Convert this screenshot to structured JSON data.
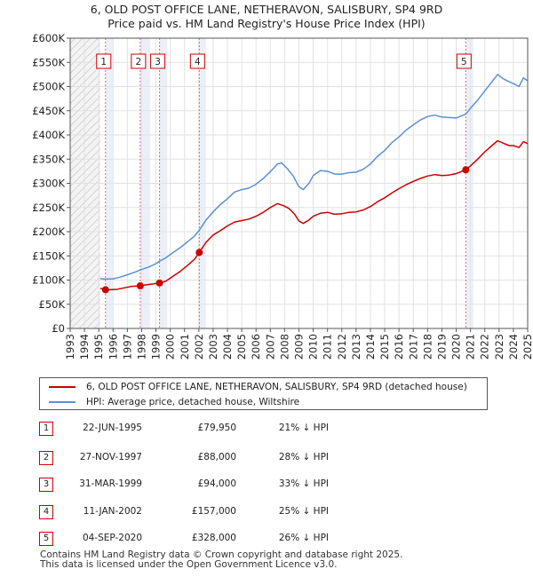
{
  "chart_data": {
    "type": "line",
    "title": "6, OLD POST OFFICE LANE, NETHERAVON, SALISBURY, SP4 9RD",
    "subtitle": "Price paid vs. HM Land Registry's House Price Index (HPI)",
    "xlim": [
      1993,
      2025
    ],
    "ylim": [
      0,
      600000
    ],
    "x_ticks": [
      1993,
      1994,
      1995,
      1996,
      1997,
      1998,
      1999,
      2000,
      2001,
      2002,
      2003,
      2004,
      2005,
      2006,
      2007,
      2008,
      2009,
      2010,
      2011,
      2012,
      2013,
      2014,
      2015,
      2016,
      2017,
      2018,
      2019,
      2020,
      2021,
      2022,
      2023,
      2024,
      2025
    ],
    "y_ticks": [
      0,
      50000,
      100000,
      150000,
      200000,
      250000,
      300000,
      350000,
      400000,
      450000,
      500000,
      550000,
      600000
    ],
    "y_tick_labels": [
      "£0",
      "£50K",
      "£100K",
      "£150K",
      "£200K",
      "£250K",
      "£300K",
      "£350K",
      "£400K",
      "£450K",
      "£500K",
      "£550K",
      "£600K"
    ],
    "hatched_region": [
      1993,
      1995.1
    ],
    "shaded_spans": [
      [
        1995.47,
        1996.0
      ],
      [
        1997.9,
        1998.6
      ],
      [
        1999.25,
        1999.8
      ],
      [
        2002.03,
        2002.5
      ],
      [
        2020.67,
        2021.2
      ]
    ],
    "series": [
      {
        "name": "6, OLD POST OFFICE LANE, NETHERAVON, SALISBURY, SP4 9RD (detached house)",
        "color": "#cc0000",
        "points": [
          [
            1995.1,
            83000
          ],
          [
            1995.47,
            79950
          ],
          [
            1995.8,
            80000
          ],
          [
            1996.3,
            81000
          ],
          [
            1996.8,
            84000
          ],
          [
            1997.3,
            87000
          ],
          [
            1997.9,
            88000
          ],
          [
            1998.3,
            90000
          ],
          [
            1998.8,
            92000
          ],
          [
            1999.25,
            94000
          ],
          [
            1999.7,
            98000
          ],
          [
            2000.2,
            108000
          ],
          [
            2000.7,
            118000
          ],
          [
            2001.2,
            130000
          ],
          [
            2001.7,
            143000
          ],
          [
            2002.03,
            157000
          ],
          [
            2002.5,
            178000
          ],
          [
            2003.0,
            193000
          ],
          [
            2003.5,
            202000
          ],
          [
            2004.0,
            212000
          ],
          [
            2004.5,
            220000
          ],
          [
            2005.0,
            223000
          ],
          [
            2005.5,
            226000
          ],
          [
            2006.0,
            232000
          ],
          [
            2006.5,
            240000
          ],
          [
            2007.0,
            250000
          ],
          [
            2007.5,
            258000
          ],
          [
            2007.9,
            254000
          ],
          [
            2008.3,
            248000
          ],
          [
            2008.7,
            236000
          ],
          [
            2009.0,
            222000
          ],
          [
            2009.3,
            217000
          ],
          [
            2009.7,
            224000
          ],
          [
            2010.0,
            232000
          ],
          [
            2010.5,
            238000
          ],
          [
            2011.0,
            240000
          ],
          [
            2011.5,
            236000
          ],
          [
            2012.0,
            237000
          ],
          [
            2012.5,
            240000
          ],
          [
            2013.0,
            241000
          ],
          [
            2013.5,
            245000
          ],
          [
            2014.0,
            252000
          ],
          [
            2014.5,
            262000
          ],
          [
            2015.0,
            270000
          ],
          [
            2015.5,
            280000
          ],
          [
            2016.0,
            289000
          ],
          [
            2016.5,
            297000
          ],
          [
            2017.0,
            304000
          ],
          [
            2017.5,
            310000
          ],
          [
            2018.0,
            315000
          ],
          [
            2018.5,
            318000
          ],
          [
            2019.0,
            316000
          ],
          [
            2019.5,
            317000
          ],
          [
            2020.0,
            320000
          ],
          [
            2020.67,
            328000
          ],
          [
            2021.0,
            336000
          ],
          [
            2021.5,
            350000
          ],
          [
            2022.0,
            365000
          ],
          [
            2022.5,
            378000
          ],
          [
            2022.9,
            388000
          ],
          [
            2023.3,
            383000
          ],
          [
            2023.7,
            378000
          ],
          [
            2024.0,
            378000
          ],
          [
            2024.4,
            374000
          ],
          [
            2024.7,
            386000
          ],
          [
            2025.0,
            382000
          ]
        ]
      },
      {
        "name": "HPI: Average price, detached house, Wiltshire",
        "color": "#5b8fd4",
        "points": [
          [
            1995.1,
            103000
          ],
          [
            1995.47,
            102000
          ],
          [
            1996.0,
            102500
          ],
          [
            1996.5,
            106000
          ],
          [
            1997.0,
            111000
          ],
          [
            1997.5,
            116000
          ],
          [
            1997.9,
            121000
          ],
          [
            1998.5,
            127000
          ],
          [
            1999.0,
            134000
          ],
          [
            1999.25,
            139000
          ],
          [
            1999.7,
            146000
          ],
          [
            2000.2,
            157000
          ],
          [
            2000.7,
            167000
          ],
          [
            2001.2,
            179000
          ],
          [
            2001.7,
            191000
          ],
          [
            2002.03,
            203000
          ],
          [
            2002.5,
            224000
          ],
          [
            2003.0,
            241000
          ],
          [
            2003.5,
            256000
          ],
          [
            2004.0,
            268000
          ],
          [
            2004.5,
            282000
          ],
          [
            2005.0,
            287000
          ],
          [
            2005.5,
            290000
          ],
          [
            2006.0,
            298000
          ],
          [
            2006.5,
            310000
          ],
          [
            2007.0,
            324000
          ],
          [
            2007.5,
            340000
          ],
          [
            2007.8,
            342000
          ],
          [
            2008.2,
            330000
          ],
          [
            2008.6,
            315000
          ],
          [
            2009.0,
            293000
          ],
          [
            2009.3,
            287000
          ],
          [
            2009.7,
            300000
          ],
          [
            2010.0,
            316000
          ],
          [
            2010.5,
            326000
          ],
          [
            2011.0,
            325000
          ],
          [
            2011.5,
            319000
          ],
          [
            2012.0,
            319000
          ],
          [
            2012.5,
            322000
          ],
          [
            2013.0,
            323000
          ],
          [
            2013.5,
            329000
          ],
          [
            2014.0,
            340000
          ],
          [
            2014.5,
            356000
          ],
          [
            2015.0,
            368000
          ],
          [
            2015.5,
            384000
          ],
          [
            2016.0,
            396000
          ],
          [
            2016.5,
            410000
          ],
          [
            2017.0,
            421000
          ],
          [
            2017.5,
            431000
          ],
          [
            2018.0,
            438000
          ],
          [
            2018.5,
            441000
          ],
          [
            2019.0,
            437000
          ],
          [
            2019.5,
            436000
          ],
          [
            2020.0,
            435000
          ],
          [
            2020.67,
            443000
          ],
          [
            2021.0,
            455000
          ],
          [
            2021.5,
            472000
          ],
          [
            2022.0,
            491000
          ],
          [
            2022.5,
            510000
          ],
          [
            2022.9,
            525000
          ],
          [
            2023.3,
            516000
          ],
          [
            2023.7,
            510000
          ],
          [
            2024.0,
            506000
          ],
          [
            2024.4,
            500000
          ],
          [
            2024.7,
            518000
          ],
          [
            2025.0,
            512000
          ]
        ]
      }
    ],
    "sales": [
      {
        "label": "1",
        "x": 1995.47,
        "y": 79950
      },
      {
        "label": "2",
        "x": 1997.9,
        "y": 88000
      },
      {
        "label": "3",
        "x": 1999.25,
        "y": 94000
      },
      {
        "label": "4",
        "x": 2002.03,
        "y": 157000
      },
      {
        "label": "5",
        "x": 2020.67,
        "y": 328000
      }
    ]
  },
  "legend": {
    "property_label": "6, OLD POST OFFICE LANE, NETHERAVON, SALISBURY, SP4 9RD (detached house)",
    "hpi_label": "HPI: Average price, detached house, Wiltshire",
    "property_color": "#cc0000",
    "hpi_color": "#5b8fd4"
  },
  "transactions": [
    {
      "num": "1",
      "date": "22-JUN-1995",
      "price": "£79,950",
      "hpi": "21% ↓ HPI"
    },
    {
      "num": "2",
      "date": "27-NOV-1997",
      "price": "£88,000",
      "hpi": "28% ↓ HPI"
    },
    {
      "num": "3",
      "date": "31-MAR-1999",
      "price": "£94,000",
      "hpi": "33% ↓ HPI"
    },
    {
      "num": "4",
      "date": "11-JAN-2002",
      "price": "£157,000",
      "hpi": "25% ↓ HPI"
    },
    {
      "num": "5",
      "date": "04-SEP-2020",
      "price": "£328,000",
      "hpi": "26% ↓ HPI"
    }
  ],
  "footer": {
    "line1": "Contains HM Land Registry data © Crown copyright and database right 2025.",
    "line2": "This data is licensed under the Open Government Licence v3.0."
  }
}
